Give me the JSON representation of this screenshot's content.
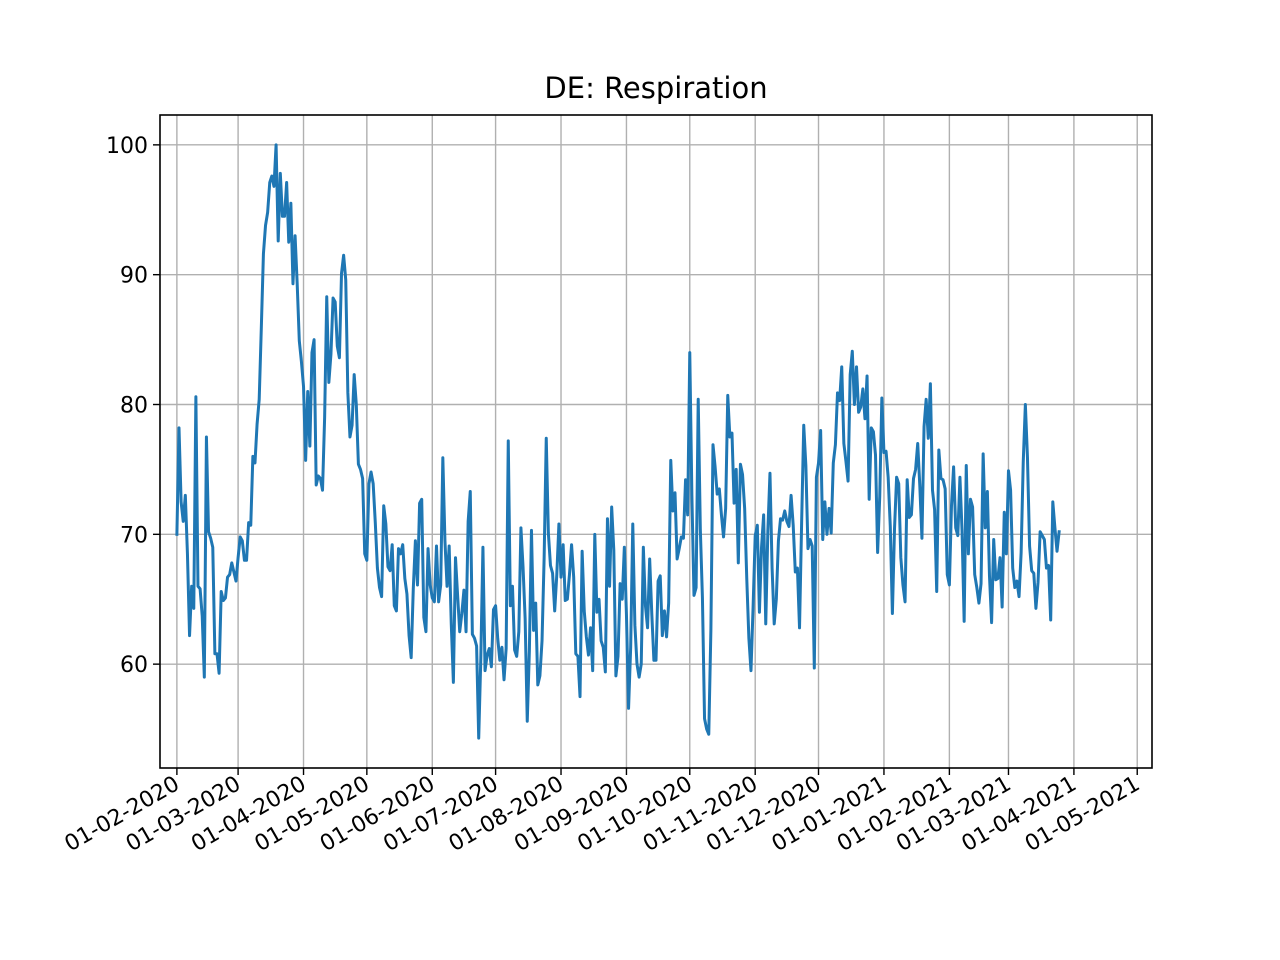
{
  "chart_data": {
    "type": "line",
    "title": "DE: Respiration",
    "xlabel": "",
    "ylabel": "",
    "x_axis": "date",
    "xlim": [
      "2020-01-24",
      "2021-05-08"
    ],
    "ylim": [
      52,
      102.3
    ],
    "grid": true,
    "legend": "none",
    "x_ticks": [
      "01-02-2020",
      "01-03-2020",
      "01-04-2020",
      "01-05-2020",
      "01-06-2020",
      "01-07-2020",
      "01-08-2020",
      "01-09-2020",
      "01-10-2020",
      "01-11-2020",
      "01-12-2020",
      "01-01-2021",
      "01-02-2021",
      "01-03-2021",
      "01-04-2021",
      "01-05-2021"
    ],
    "x_tick_dates": [
      "2020-02-01",
      "2020-03-01",
      "2020-04-01",
      "2020-05-01",
      "2020-06-01",
      "2020-07-01",
      "2020-08-01",
      "2020-09-01",
      "2020-10-01",
      "2020-11-01",
      "2020-12-01",
      "2021-01-01",
      "2021-02-01",
      "2021-03-01",
      "2021-04-01",
      "2021-05-01"
    ],
    "y_ticks": [
      60,
      70,
      80,
      90,
      100
    ],
    "y_tick_labels": [
      "60",
      "70",
      "80",
      "90",
      "100"
    ],
    "series": [
      {
        "color": "#1f77b4",
        "start_date": "2020-02-01",
        "values": [
          70.0,
          78.2,
          72.5,
          71.0,
          73.0,
          68.5,
          62.2,
          66.0,
          64.3,
          80.6,
          66.0,
          65.8,
          63.7,
          59.0,
          77.5,
          70.2,
          69.7,
          69.0,
          60.8,
          60.8,
          59.3,
          65.6,
          64.9,
          65.1,
          66.7,
          66.9,
          67.8,
          67.1,
          66.4,
          68.2,
          69.8,
          69.5,
          68.0,
          68.0,
          70.9,
          70.7,
          76.0,
          75.5,
          78.5,
          80.4,
          85.9,
          91.6,
          93.8,
          94.8,
          97.1,
          97.6,
          96.8,
          100.0,
          92.6,
          97.8,
          94.5,
          94.5,
          97.1,
          92.5,
          95.5,
          89.3,
          93.0,
          89.3,
          84.9,
          83.3,
          81.4,
          75.7,
          81.0,
          76.8,
          84.0,
          85.0,
          73.8,
          74.5,
          74.3,
          73.4,
          79.0,
          88.3,
          81.7,
          83.9,
          88.2,
          87.9,
          84.5,
          83.6,
          90.1,
          91.5,
          89.6,
          80.9,
          77.5,
          78.4,
          82.3,
          80.0,
          75.4,
          75.0,
          74.3,
          68.5,
          68.0,
          73.9,
          74.8,
          73.9,
          70.9,
          67.4,
          65.9,
          65.2,
          72.2,
          70.8,
          67.5,
          67.2,
          69.2,
          64.5,
          64.1,
          68.9,
          68.5,
          69.2,
          66.6,
          65.4,
          62.2,
          60.5,
          65.8,
          69.5,
          66.1,
          72.4,
          72.7,
          63.6,
          62.5,
          68.9,
          66.1,
          65.1,
          64.8,
          69.1,
          64.8,
          66.1,
          75.9,
          69.5,
          66.0,
          69.1,
          63.1,
          58.6,
          68.2,
          65.3,
          62.5,
          63.9,
          65.7,
          62.5,
          71.0,
          73.3,
          62.3,
          62.0,
          61.4,
          54.3,
          60.5,
          69.0,
          59.5,
          60.7,
          61.2,
          59.8,
          64.2,
          64.5,
          62.0,
          60.3,
          61.3,
          58.8,
          61.2,
          77.2,
          64.5,
          66.0,
          61.1,
          60.6,
          62.5,
          70.5,
          67.5,
          63.5,
          55.6,
          61.0,
          70.3,
          62.6,
          64.7,
          58.4,
          59.1,
          61.8,
          68.2,
          77.4,
          70.1,
          67.6,
          67.0,
          64.1,
          66.9,
          70.8,
          66.7,
          69.2,
          64.9,
          65.0,
          66.9,
          69.2,
          66.7,
          60.8,
          60.6,
          57.5,
          68.7,
          64.1,
          62.1,
          60.7,
          62.8,
          59.5,
          70.0,
          64.0,
          65.0,
          61.8,
          61.3,
          59.4,
          71.2,
          66.0,
          72.1,
          68.8,
          59.1,
          60.6,
          66.2,
          65.0,
          69.0,
          63.8,
          56.6,
          61.3,
          70.8,
          63.0,
          60.0,
          59.0,
          60.0,
          69.0,
          64.5,
          62.8,
          68.1,
          63.9,
          60.3,
          60.3,
          66.4,
          66.8,
          62.2,
          64.1,
          62.1,
          64.7,
          75.7,
          71.8,
          73.2,
          68.1,
          68.9,
          69.8,
          69.7,
          74.2,
          71.5,
          84.0,
          73.0,
          65.3,
          65.9,
          80.4,
          70.4,
          65.1,
          55.8,
          55.0,
          54.6,
          62.6,
          76.9,
          75.2,
          73.1,
          73.5,
          71.5,
          69.8,
          72.0,
          80.7,
          77.5,
          77.8,
          72.4,
          75.0,
          67.8,
          75.4,
          74.6,
          72.0,
          66.6,
          62.0,
          59.5,
          64.4,
          69.9,
          70.7,
          64.0,
          69.0,
          71.5,
          63.1,
          70.3,
          74.7,
          67.4,
          63.1,
          65.0,
          69.5,
          71.2,
          71.1,
          71.8,
          71.0,
          70.6,
          73.0,
          70.7,
          67.1,
          67.4,
          62.8,
          70.9,
          78.4,
          75.3,
          68.9,
          69.6,
          69.1,
          59.7,
          74.4,
          75.5,
          78.0,
          69.6,
          72.5,
          70.0,
          72.0,
          70.1,
          75.5,
          76.9,
          80.9,
          80.3,
          82.9,
          77.0,
          75.6,
          74.1,
          82.3,
          84.1,
          80.0,
          82.9,
          79.4,
          79.8,
          81.2,
          78.9,
          82.2,
          72.7,
          78.2,
          77.9,
          76.1,
          68.6,
          72.9,
          80.5,
          76.3,
          76.4,
          74.4,
          70.6,
          63.9,
          70.4,
          74.4,
          73.9,
          68.2,
          66.1,
          64.8,
          74.2,
          71.3,
          71.5,
          74.3,
          75.0,
          77.0,
          73.7,
          69.7,
          78.3,
          80.4,
          77.4,
          81.6,
          73.4,
          71.9,
          65.6,
          76.5,
          74.3,
          74.2,
          73.5,
          66.9,
          66.1,
          72.2,
          75.2,
          70.5,
          69.9,
          74.4,
          70.3,
          63.3,
          75.3,
          68.5,
          72.7,
          72.1,
          66.9,
          65.9,
          64.7,
          66.2,
          76.2,
          70.5,
          73.3,
          66.8,
          63.2,
          69.6,
          66.5,
          66.6,
          68.2,
          64.4,
          71.7,
          68.5,
          74.9,
          73.4,
          67.4,
          65.9,
          66.4,
          65.2,
          68.6,
          75.6,
          80.0,
          75.9,
          69.1,
          67.2,
          67.0,
          64.3,
          66.3,
          70.2,
          69.9,
          69.6,
          67.4,
          67.6,
          63.4,
          72.5,
          70.5,
          68.7,
          70.2
        ]
      }
    ]
  }
}
